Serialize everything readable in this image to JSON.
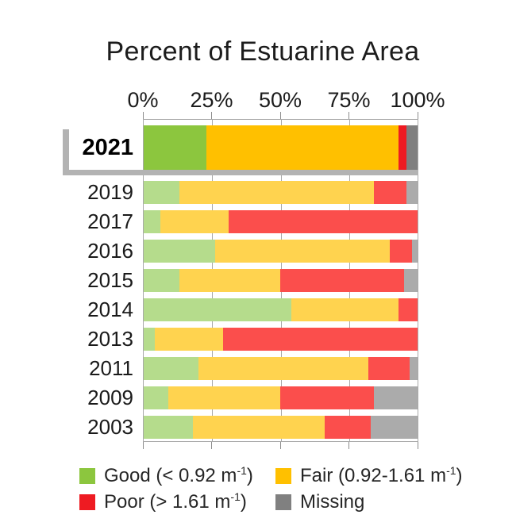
{
  "title": "Percent of Estuarine Area",
  "chart_data": {
    "type": "bar",
    "orientation": "horizontal",
    "stacked": true,
    "units": "percent",
    "title": "Percent of Estuarine Area",
    "xlabel": "",
    "ylabel": "",
    "x_ticks": [
      "0%",
      "25%",
      "50%",
      "75%",
      "100%"
    ],
    "x_range": [
      0,
      100
    ],
    "grid": "vertical",
    "legend_position": "bottom",
    "categories": [
      "2021",
      "2019",
      "2017",
      "2016",
      "2015",
      "2014",
      "2013",
      "2011",
      "2009",
      "2003"
    ],
    "highlighted_category": "2021",
    "series": [
      {
        "key": "good",
        "name": "Good",
        "values": [
          23,
          13,
          6,
          26,
          13,
          54,
          4,
          20,
          9,
          18
        ]
      },
      {
        "key": "fair",
        "name": "Fair",
        "values": [
          70,
          71,
          25,
          64,
          37,
          39,
          25,
          62,
          41,
          48
        ]
      },
      {
        "key": "poor",
        "name": "Poor",
        "values": [
          3,
          12,
          69,
          8,
          45,
          7,
          71,
          15,
          34,
          17
        ]
      },
      {
        "key": "missing",
        "name": "Missing",
        "values": [
          4,
          4,
          0,
          2,
          5,
          0,
          0,
          3,
          16,
          17
        ]
      }
    ]
  },
  "legend": {
    "items": [
      {
        "key": "good",
        "label_pre": "Good (< 0.92 m",
        "label_sup": "-1",
        "label_post": ")"
      },
      {
        "key": "fair",
        "label_pre": "Fair (0.92-1.61 m",
        "label_sup": "-1",
        "label_post": ")"
      },
      {
        "key": "poor",
        "label_pre": "Poor (> 1.61 m",
        "label_sup": "-1",
        "label_post": ")"
      },
      {
        "key": "missing",
        "label_pre": "Missing",
        "label_sup": "",
        "label_post": ""
      }
    ]
  },
  "colors": {
    "highlight": {
      "good": "#8CC63E",
      "fair": "#FFC000",
      "poor": "#EE1B22",
      "missing": "#7F7F7F"
    },
    "normal": {
      "good": "#B5DC8C",
      "fair": "#FFD34F",
      "poor": "#FB4E4C",
      "missing": "#ABABAB"
    },
    "legend_swatch": {
      "good": "#8CC63E",
      "fair": "#FFC000",
      "poor": "#EE1B22",
      "missing": "#808080"
    },
    "axis_line": "#A9A9A9",
    "gridline": "#A8A8A8",
    "tick": "#8C8C8C",
    "highlight_bracket": "#B3B3B3"
  }
}
